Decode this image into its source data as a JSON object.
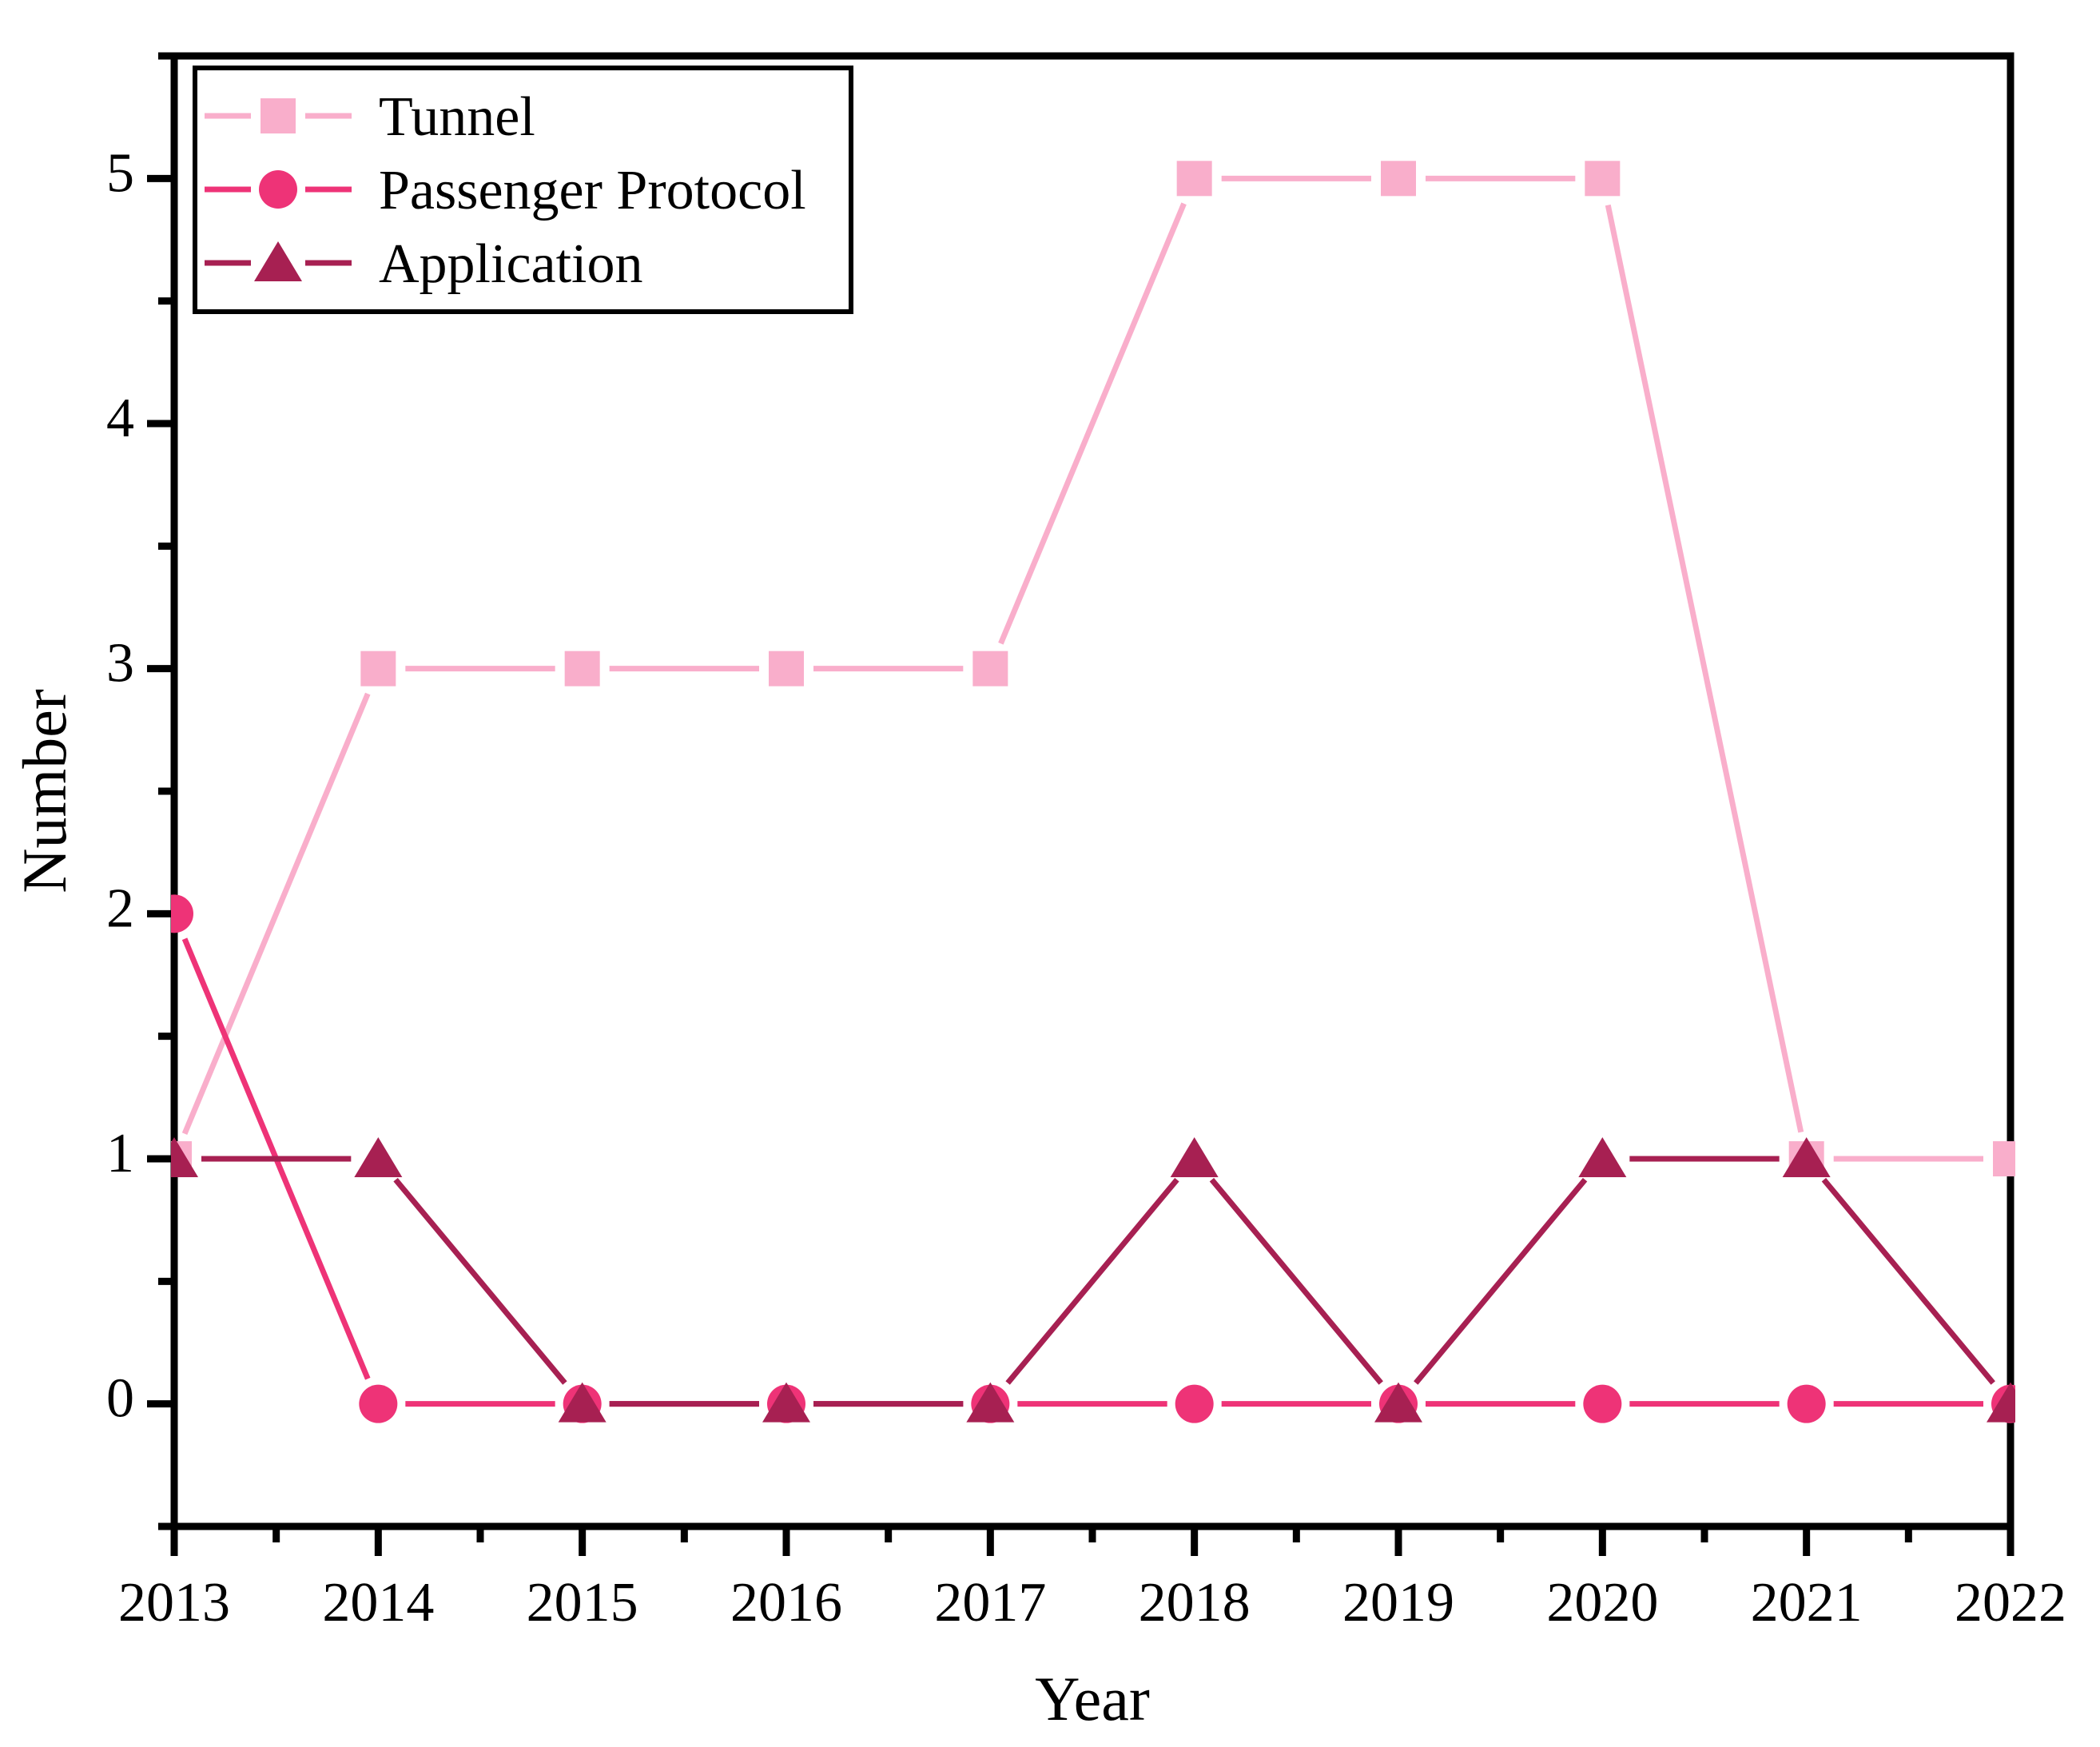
{
  "chart_data": {
    "type": "line",
    "title": "",
    "xlabel": "Year",
    "ylabel": "Number",
    "x": [
      2013,
      2014,
      2015,
      2016,
      2017,
      2018,
      2019,
      2020,
      2021,
      2022
    ],
    "x_tick_labels": [
      "2013",
      "2014",
      "2015",
      "2016",
      "2017",
      "2018",
      "2019",
      "2020",
      "2021",
      "2022"
    ],
    "y_ticks": [
      0,
      1,
      2,
      3,
      4,
      5
    ],
    "y_tick_labels": [
      "0",
      "1",
      "2",
      "3",
      "4",
      "5"
    ],
    "xlim": [
      2013,
      2022
    ],
    "ylim": [
      -0.5,
      5.5
    ],
    "x_minor_step": 0.5,
    "y_minor_step": 0.5,
    "grid": false,
    "legend_position": "top-left",
    "axis_color": "#000000",
    "background_color": "#ffffff",
    "series": [
      {
        "name": "Tunnel",
        "marker": "square",
        "color": "#F9AECB",
        "values": [
          1,
          3,
          3,
          3,
          3,
          5,
          5,
          5,
          1,
          1
        ]
      },
      {
        "name": "Passenger Protocol",
        "marker": "circle",
        "color": "#EE3377",
        "values": [
          2,
          0,
          0,
          0,
          0,
          0,
          0,
          0,
          0,
          0
        ]
      },
      {
        "name": "Application",
        "marker": "triangle",
        "color": "#A72052",
        "values": [
          1,
          1,
          0,
          0,
          0,
          1,
          0,
          1,
          1,
          0
        ]
      }
    ]
  }
}
